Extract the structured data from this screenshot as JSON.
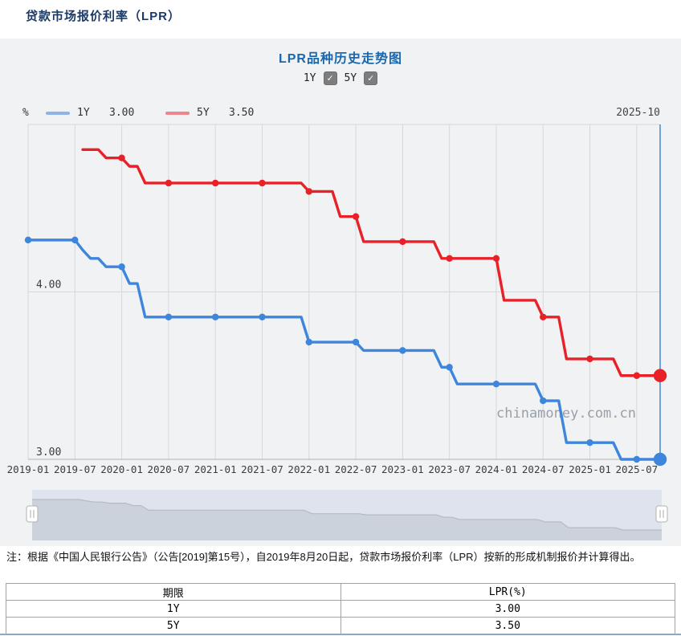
{
  "page": {
    "title": "贷款市场报价利率（LPR）"
  },
  "panel": {
    "chart_title": "LPR品种历史走势图",
    "check_icon": "✓",
    "controls": [
      {
        "label": "1Y",
        "checked": true
      },
      {
        "label": "5Y",
        "checked": true
      }
    ]
  },
  "legend": {
    "unit": "%",
    "latest_date": "2025-10"
  },
  "chart_data": {
    "type": "line",
    "title": "LPR品种历史走势图",
    "ylabel": "%",
    "ylim": [
      3.0,
      5.0
    ],
    "grid": true,
    "yticks": [
      {
        "value": 4.0,
        "label": "4.00"
      },
      {
        "value": 3.0,
        "label": "3.00"
      }
    ],
    "x_start": "2019-01",
    "x_end": "2025-10",
    "months_total": 82,
    "xticks": [
      "2019-01",
      "2019-07",
      "2020-01",
      "2020-07",
      "2021-01",
      "2021-07",
      "2022-01",
      "2022-07",
      "2023-01",
      "2023-07",
      "2024-01",
      "2024-07",
      "2025-01",
      "2025-07"
    ],
    "xtick_month_indices": [
      0,
      6,
      12,
      18,
      24,
      30,
      36,
      42,
      48,
      54,
      60,
      66,
      72,
      78
    ],
    "watermark": "chinamoney.com.cn",
    "crosshair_color": "#4d8dda",
    "grid_color": "#d7d7d7",
    "axis_color": "#b2b2b2",
    "series": [
      {
        "name": "1Y",
        "latest": "3.00",
        "color": "#3d86dc",
        "legend_color": "#8fb3e6",
        "start_index": 0,
        "values": [
          4.31,
          4.31,
          4.31,
          4.31,
          4.31,
          4.31,
          4.31,
          4.25,
          4.2,
          4.2,
          4.15,
          4.15,
          4.15,
          4.05,
          4.05,
          3.85,
          3.85,
          3.85,
          3.85,
          3.85,
          3.85,
          3.85,
          3.85,
          3.85,
          3.85,
          3.85,
          3.85,
          3.85,
          3.85,
          3.85,
          3.85,
          3.85,
          3.85,
          3.85,
          3.85,
          3.85,
          3.7,
          3.7,
          3.7,
          3.7,
          3.7,
          3.7,
          3.7,
          3.65,
          3.65,
          3.65,
          3.65,
          3.65,
          3.65,
          3.65,
          3.65,
          3.65,
          3.65,
          3.55,
          3.55,
          3.45,
          3.45,
          3.45,
          3.45,
          3.45,
          3.45,
          3.45,
          3.45,
          3.45,
          3.45,
          3.45,
          3.35,
          3.35,
          3.35,
          3.1,
          3.1,
          3.1,
          3.1,
          3.1,
          3.1,
          3.1,
          3.0,
          3.0,
          3.0,
          3.0,
          3.0,
          3.0
        ]
      },
      {
        "name": "5Y",
        "latest": "3.50",
        "color": "#e82129",
        "legend_color": "#ea868c",
        "start_index": 7,
        "values": [
          4.85,
          4.85,
          4.85,
          4.8,
          4.8,
          4.8,
          4.75,
          4.75,
          4.65,
          4.65,
          4.65,
          4.65,
          4.65,
          4.65,
          4.65,
          4.65,
          4.65,
          4.65,
          4.65,
          4.65,
          4.65,
          4.65,
          4.65,
          4.65,
          4.65,
          4.65,
          4.65,
          4.65,
          4.65,
          4.6,
          4.6,
          4.6,
          4.6,
          4.45,
          4.45,
          4.45,
          4.3,
          4.3,
          4.3,
          4.3,
          4.3,
          4.3,
          4.3,
          4.3,
          4.3,
          4.3,
          4.2,
          4.2,
          4.2,
          4.2,
          4.2,
          4.2,
          4.2,
          4.2,
          3.95,
          3.95,
          3.95,
          3.95,
          3.95,
          3.85,
          3.85,
          3.85,
          3.6,
          3.6,
          3.6,
          3.6,
          3.6,
          3.6,
          3.6,
          3.5,
          3.5,
          3.5,
          3.5,
          3.5,
          3.5
        ]
      }
    ],
    "navigator": {
      "bg_color": "#dfe3ed",
      "fill_color": "#ccd2dc",
      "line_color": "#b4bbc6"
    }
  },
  "note": "注：根据《中国人民银行公告》（公告[2019]第15号），自2019年8月20日起，贷款市场报价利率（LPR）按新的形成机制报价并计算得出。",
  "table": {
    "headers": [
      "期限",
      "LPR(%)"
    ],
    "rows": [
      [
        "1Y",
        "3.00"
      ],
      [
        "5Y",
        "3.50"
      ]
    ]
  }
}
